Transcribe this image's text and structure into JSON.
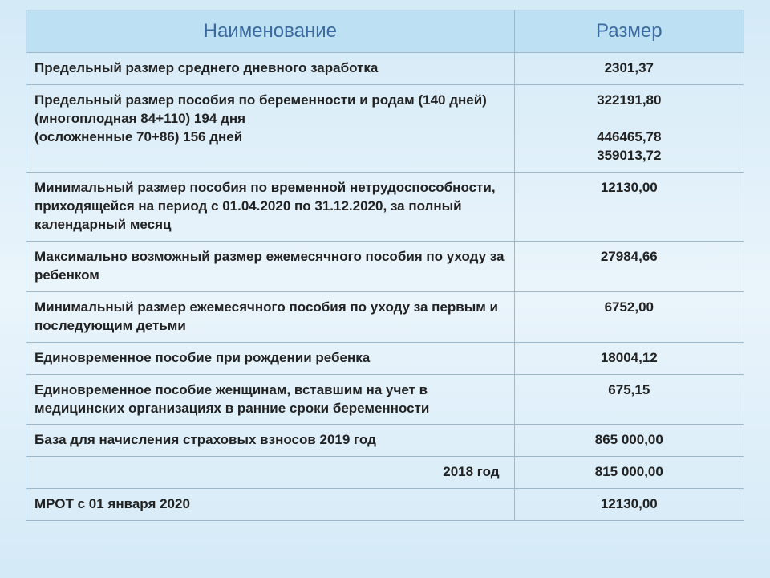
{
  "table": {
    "headers": {
      "name": "Наименование",
      "value": "Размер"
    },
    "headerBg": "#bde0f2",
    "headerColor": "#3b6aa0",
    "borderColor": "#9fb8c9",
    "bodyBg": "linear-gradient(to bottom, #d4eaf7 0%, #eaf4fb 50%, #d4eaf7 100%)",
    "fontSize": 17,
    "headerFontSize": 24,
    "colWidths": [
      "68%",
      "32%"
    ],
    "rows": [
      {
        "name": "Предельный размер среднего дневного заработка",
        "value": "2301,37"
      },
      {
        "name": "Предельный размер пособия по беременности и родам (140 дней)\n(многоплодная 84+110) 194 дня\n(осложненные 70+86) 156 дней",
        "value": "322191,80\n\n446465,78\n359013,72"
      },
      {
        "name": "Минимальный размер пособия по временной нетрудоспособности, приходящейся на период с 01.04.2020 по 31.12.2020, за полный календарный месяц",
        "value": "12130,00"
      },
      {
        "name": "Максимально возможный размер ежемесячного пособия по уходу за ребенком",
        "value": "27984,66"
      },
      {
        "name": "Минимальный размер ежемесячного пособия по уходу за первым  и последующим детьми",
        "value": "6752,00"
      },
      {
        "name": "Единовременное пособие при рождении ребенка",
        "value": "18004,12"
      },
      {
        "name": "Единовременное пособие женщинам, вставшим  на учет в медицинских организациях в ранние сроки беременности",
        "value": "675,15"
      },
      {
        "name": "База для начисления страховых взносов                     2019 год",
        "value": "865 000,00",
        "nameAlign": "left"
      },
      {
        "name": "2018 год",
        "value": "815 000,00",
        "nameAlign": "right"
      },
      {
        "name": "МРОТ с 01 января 2020",
        "value": "12130,00"
      }
    ]
  }
}
